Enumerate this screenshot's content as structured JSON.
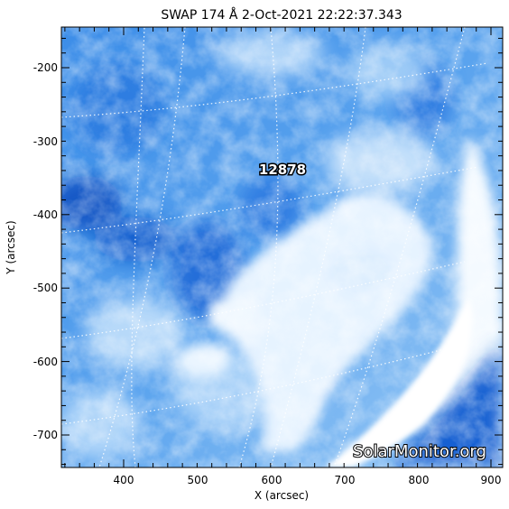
{
  "title": "SWAP 174 Å  2-Oct-2021 22:22:37.343",
  "xlabel": "X (arcsec)",
  "ylabel": "Y (arcsec)",
  "x_ticks": [
    "400",
    "500",
    "600",
    "700",
    "800",
    "900"
  ],
  "y_ticks": [
    "-200",
    "-300",
    "-400",
    "-500",
    "-600",
    "-700"
  ],
  "region_label": "12878",
  "watermark": "SolarMonitor.org",
  "colors": {
    "deep_blue": "#0a55c8",
    "mid_blue": "#3a8ae6",
    "light_blue": "#8cc2f6",
    "bright": "#f2f9ff",
    "grid": "#ffffff"
  }
}
